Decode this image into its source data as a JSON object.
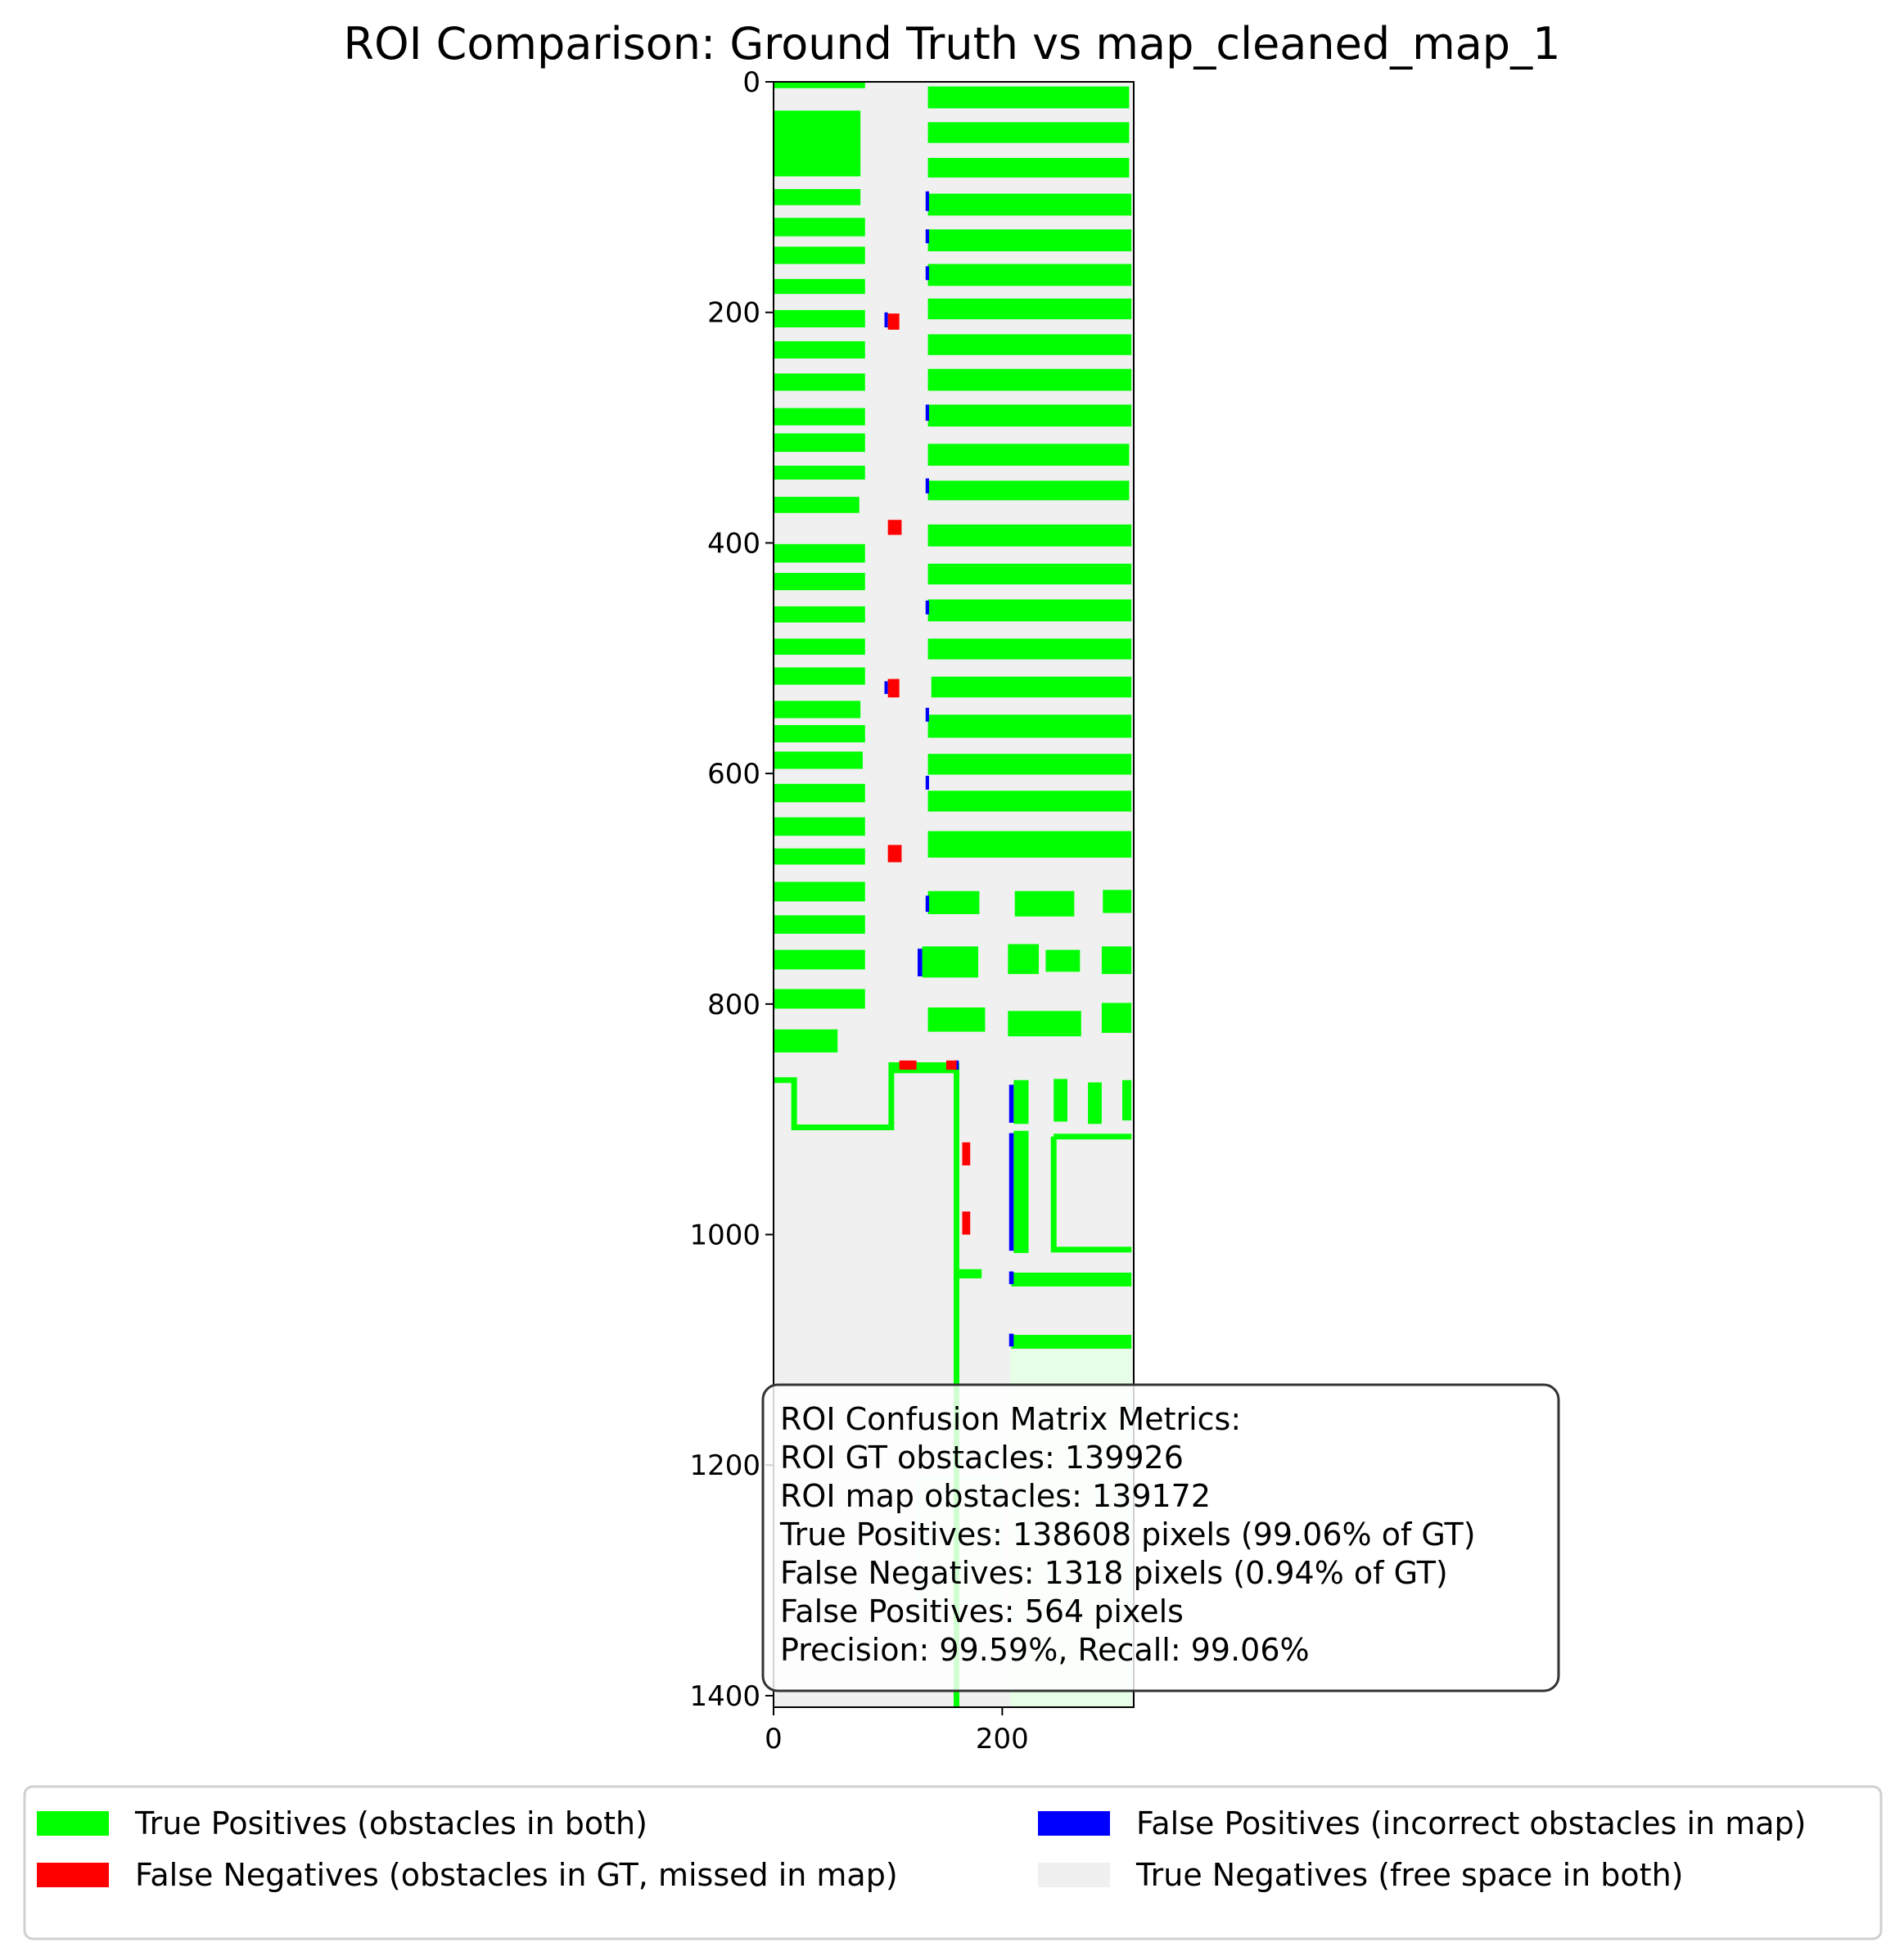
{
  "chart_data": {
    "type": "heatmap",
    "title": "ROI Comparison: Ground Truth vs map_cleaned_map_1",
    "xlabel": "",
    "ylabel": "",
    "xlim": [
      0,
      315
    ],
    "ylim": [
      1410,
      0
    ],
    "xticks": [
      "0",
      "200"
    ],
    "yticks": [
      "0",
      "200",
      "400",
      "600",
      "800",
      "1000",
      "1200",
      "1400"
    ],
    "grid": false,
    "legend_placement": "bottom",
    "colors": {
      "true_positive": "#00ff00",
      "false_negative": "#ff0000",
      "false_positive": "#0000ff",
      "true_negative": "#f0f0f0"
    },
    "legend": [
      {
        "label": "True Positives (obstacles in both)",
        "color": "#00ff00"
      },
      {
        "label": "False Negatives (obstacles in GT, missed in map)",
        "color": "#ff0000"
      },
      {
        "label": "False Positives (incorrect obstacles in map)",
        "color": "#0000ff"
      },
      {
        "label": "True Negatives (free space in both)",
        "color": "#f0f0f0"
      }
    ],
    "metrics": {
      "heading": "ROI Confusion Matrix Metrics:",
      "lines": [
        "ROI GT obstacles: 139926",
        "ROI map obstacles: 139172",
        "True Positives: 138608 pixels (99.06% of GT)",
        "False Negatives: 1318 pixels (0.94% of GT)",
        "False Positives: 564 pixels",
        "Precision: 99.59%, Recall: 99.06%"
      ],
      "roi_gt_obstacles": 139926,
      "roi_map_obstacles": 139172,
      "true_positives": 138608,
      "false_negatives": 1318,
      "false_positives": 564,
      "precision_pct": 99.59,
      "recall_pct": 99.06
    },
    "regions": {
      "tp_rects": [
        [
          0,
          25,
          76,
          82
        ],
        [
          0,
          93,
          76,
          107
        ],
        [
          0,
          118,
          80,
          134
        ],
        [
          0,
          143,
          80,
          158
        ],
        [
          0,
          171,
          80,
          184
        ],
        [
          0,
          198,
          80,
          213
        ],
        [
          0,
          225,
          80,
          240
        ],
        [
          0,
          253,
          80,
          268
        ],
        [
          0,
          283,
          80,
          298
        ],
        [
          0,
          305,
          80,
          321
        ],
        [
          0,
          333,
          80,
          345
        ],
        [
          0,
          360,
          75,
          374
        ],
        [
          0,
          401,
          80,
          417
        ],
        [
          0,
          426,
          80,
          441
        ],
        [
          0,
          455,
          80,
          469
        ],
        [
          0,
          483,
          80,
          497
        ],
        [
          0,
          508,
          80,
          523
        ],
        [
          0,
          537,
          76,
          552
        ],
        [
          0,
          558,
          80,
          573
        ],
        [
          0,
          581,
          78,
          596
        ],
        [
          0,
          609,
          80,
          625
        ],
        [
          0,
          638,
          80,
          654
        ],
        [
          0,
          665,
          80,
          679
        ],
        [
          0,
          694,
          80,
          711
        ],
        [
          0,
          723,
          80,
          739
        ],
        [
          0,
          753,
          80,
          770
        ],
        [
          0,
          787,
          80,
          804
        ],
        [
          0,
          822,
          56,
          842
        ],
        [
          135,
          4,
          311,
          23
        ],
        [
          135,
          35,
          311,
          53
        ],
        [
          135,
          66,
          311,
          83
        ],
        [
          135,
          97,
          313,
          116
        ],
        [
          135,
          128,
          313,
          147
        ],
        [
          135,
          158,
          313,
          177
        ],
        [
          135,
          188,
          313,
          206
        ],
        [
          135,
          219,
          313,
          237
        ],
        [
          135,
          249,
          313,
          268
        ],
        [
          135,
          280,
          313,
          299
        ],
        [
          135,
          314,
          311,
          333
        ],
        [
          135,
          346,
          311,
          363
        ],
        [
          135,
          384,
          313,
          403
        ],
        [
          135,
          418,
          313,
          436
        ],
        [
          135,
          449,
          313,
          468
        ],
        [
          135,
          483,
          313,
          501
        ],
        [
          138,
          516,
          313,
          534
        ],
        [
          135,
          549,
          313,
          569
        ],
        [
          135,
          583,
          313,
          601
        ],
        [
          135,
          615,
          313,
          633
        ],
        [
          135,
          650,
          313,
          673
        ],
        [
          135,
          702,
          180,
          722
        ],
        [
          211,
          702,
          263,
          724
        ],
        [
          288,
          701,
          313,
          721
        ],
        [
          130,
          750,
          179,
          777
        ],
        [
          205,
          748,
          232,
          774
        ],
        [
          238,
          753,
          268,
          772
        ],
        [
          287,
          750,
          313,
          774
        ],
        [
          135,
          803,
          185,
          824
        ],
        [
          205,
          806,
          269,
          828
        ],
        [
          287,
          799,
          313,
          825
        ],
        [
          105,
          852,
          160,
          860
        ],
        [
          210,
          866,
          223,
          904
        ],
        [
          245,
          865,
          257,
          902
        ],
        [
          275,
          868,
          287,
          904
        ],
        [
          305,
          866,
          313,
          901
        ],
        [
          210,
          910,
          223,
          1016
        ],
        [
          160,
          1030,
          182,
          1038
        ],
        [
          208,
          1033,
          313,
          1045
        ],
        [
          208,
          1087,
          313,
          1099
        ]
      ],
      "tp_lines": [
        [
          [
            0,
            866
          ],
          [
            18,
            866
          ],
          [
            18,
            907
          ],
          [
            103,
            907
          ],
          [
            103,
            853
          ],
          [
            160,
            853
          ],
          [
            160,
            1410
          ]
        ],
        [
          [
            245,
            915
          ],
          [
            313,
            915
          ]
        ],
        [
          [
            245,
            915
          ],
          [
            245,
            1013
          ],
          [
            313,
            1013
          ]
        ],
        [
          [
            0,
            3
          ],
          [
            80,
            3
          ]
        ]
      ],
      "fn_rects": [
        [
          100,
          201,
          110,
          215
        ],
        [
          100,
          380,
          112,
          393
        ],
        [
          100,
          518,
          110,
          534
        ],
        [
          100,
          662,
          112,
          677
        ],
        [
          110,
          849,
          125,
          857
        ],
        [
          151,
          849,
          160,
          857
        ],
        [
          165,
          920,
          172,
          940
        ],
        [
          165,
          980,
          172,
          1000
        ]
      ],
      "fp_rects": [
        [
          97,
          200,
          100,
          213
        ],
        [
          97,
          520,
          100,
          531
        ],
        [
          133,
          95,
          136,
          112
        ],
        [
          133,
          128,
          136,
          140
        ],
        [
          133,
          160,
          136,
          172
        ],
        [
          133,
          280,
          136,
          294
        ],
        [
          133,
          344,
          136,
          357
        ],
        [
          133,
          450,
          136,
          462
        ],
        [
          133,
          543,
          136,
          555
        ],
        [
          133,
          602,
          136,
          614
        ],
        [
          133,
          706,
          136,
          720
        ],
        [
          126,
          752,
          130,
          776
        ],
        [
          206,
          870,
          210,
          903
        ],
        [
          206,
          912,
          210,
          1014
        ],
        [
          206,
          1086,
          210,
          1097
        ],
        [
          206,
          1032,
          210,
          1043
        ],
        [
          158,
          849,
          162,
          857
        ]
      ],
      "faint_rects": [
        [
          207,
          1100,
          313,
          1410
        ],
        [
          125,
          1210,
          200,
          1320
        ],
        [
          210,
          1180,
          313,
          1380
        ]
      ]
    }
  }
}
